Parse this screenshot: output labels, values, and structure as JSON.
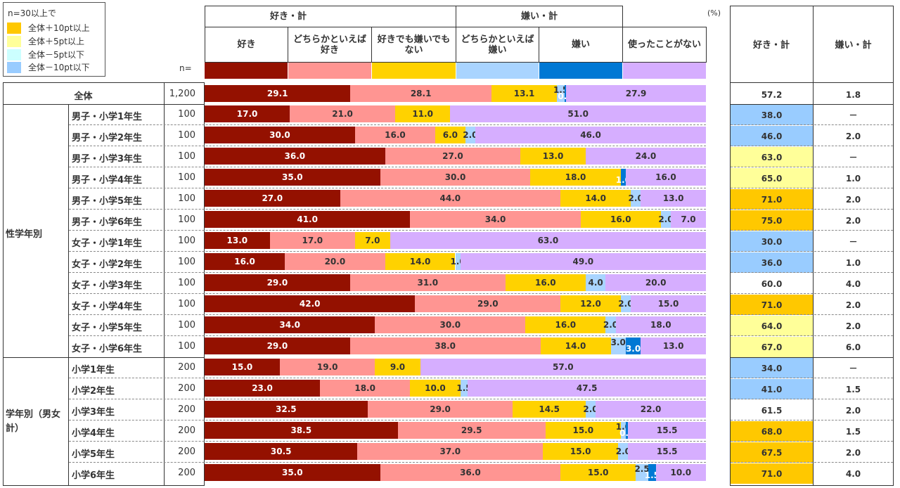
{
  "legend": {
    "title": "n=30以上で",
    "items": [
      {
        "label": "全体＋10pt以上",
        "color": "#FFC800"
      },
      {
        "label": "全体＋5pt以上",
        "color": "#FFFF99"
      },
      {
        "label": "全体－5pt以下",
        "color": "#CCFFFF"
      },
      {
        "label": "全体－10pt以下",
        "color": "#99CCFF"
      }
    ]
  },
  "header": {
    "group_like": "好き・計",
    "group_dislike": "嫌い・計",
    "n_label": "n=",
    "unit": "(%)",
    "summary_like": "好き・計",
    "summary_dislike": "嫌い・計"
  },
  "chart_data": {
    "type": "bar",
    "stacked": true,
    "orientation": "horizontal",
    "xlim": [
      0,
      100
    ],
    "series": [
      {
        "name": "好き",
        "color": "#941100"
      },
      {
        "name": "どちらかといえば\n好き",
        "color": "#FF9592"
      },
      {
        "name": "好きでも嫌いでも\nない",
        "color": "#FFD200"
      },
      {
        "name": "どちらかといえば\n嫌い",
        "color": "#A9D4FF"
      },
      {
        "name": "嫌い",
        "color": "#0078D4"
      },
      {
        "name": "使ったことがない",
        "color": "#D6AEFF"
      }
    ],
    "rows": [
      {
        "group": "",
        "label": "全体",
        "n": "1,200",
        "values": [
          29.1,
          28.1,
          13.1,
          1.5,
          0.3,
          27.9
        ],
        "labels": [
          "29.1",
          "28.1",
          "13.1",
          "1.5",
          "0.3",
          "27.9"
        ],
        "like_total": "57.2",
        "dislike_total": "1.8",
        "like_highlight": ""
      },
      {
        "group": "性学年別",
        "label": "男子・小学1年生",
        "n": "100",
        "values": [
          17.0,
          21.0,
          11.0,
          0,
          0,
          51.0
        ],
        "labels": [
          "17.0",
          "21.0",
          "11.0",
          "",
          "",
          "51.0"
        ],
        "like_total": "38.0",
        "dislike_total": "－",
        "like_highlight": "#99CCFF"
      },
      {
        "group": "性学年別",
        "label": "男子・小学2年生",
        "n": "100",
        "values": [
          30.0,
          16.0,
          6.0,
          2.0,
          0,
          46.0
        ],
        "labels": [
          "30.0",
          "16.0",
          "6.0",
          "2.0",
          "",
          "46.0"
        ],
        "like_total": "46.0",
        "dislike_total": "2.0",
        "like_highlight": "#99CCFF"
      },
      {
        "group": "性学年別",
        "label": "男子・小学3年生",
        "n": "100",
        "values": [
          36.0,
          27.0,
          13.0,
          0,
          0,
          24.0
        ],
        "labels": [
          "36.0",
          "27.0",
          "13.0",
          "",
          "",
          "24.0"
        ],
        "like_total": "63.0",
        "dislike_total": "－",
        "like_highlight": "#FFFF99"
      },
      {
        "group": "性学年別",
        "label": "男子・小学4年生",
        "n": "100",
        "values": [
          35.0,
          30.0,
          18.0,
          0,
          1.0,
          16.0
        ],
        "labels": [
          "35.0",
          "30.0",
          "18.0",
          "",
          "1.0",
          "16.0"
        ],
        "like_total": "65.0",
        "dislike_total": "1.0",
        "like_highlight": "#FFFF99"
      },
      {
        "group": "性学年別",
        "label": "男子・小学5年生",
        "n": "100",
        "values": [
          27.0,
          44.0,
          14.0,
          2.0,
          0,
          13.0
        ],
        "labels": [
          "27.0",
          "44.0",
          "14.0",
          "2.0",
          "",
          "13.0"
        ],
        "like_total": "71.0",
        "dislike_total": "2.0",
        "like_highlight": "#FFC800"
      },
      {
        "group": "性学年別",
        "label": "男子・小学6年生",
        "n": "100",
        "values": [
          41.0,
          34.0,
          16.0,
          2.0,
          0,
          7.0
        ],
        "labels": [
          "41.0",
          "34.0",
          "16.0",
          "2.0",
          "",
          "7.0"
        ],
        "like_total": "75.0",
        "dislike_total": "2.0",
        "like_highlight": "#FFC800"
      },
      {
        "group": "性学年別",
        "label": "女子・小学1年生",
        "n": "100",
        "values": [
          13.0,
          17.0,
          7.0,
          0,
          0,
          63.0
        ],
        "labels": [
          "13.0",
          "17.0",
          "7.0",
          "",
          "",
          "63.0"
        ],
        "like_total": "30.0",
        "dislike_total": "－",
        "like_highlight": "#99CCFF"
      },
      {
        "group": "性学年別",
        "label": "女子・小学2年生",
        "n": "100",
        "values": [
          16.0,
          20.0,
          14.0,
          1.0,
          0,
          49.0
        ],
        "labels": [
          "16.0",
          "20.0",
          "14.0",
          "1.0",
          "",
          "49.0"
        ],
        "like_total": "36.0",
        "dislike_total": "1.0",
        "like_highlight": "#99CCFF"
      },
      {
        "group": "性学年別",
        "label": "女子・小学3年生",
        "n": "100",
        "values": [
          29.0,
          31.0,
          16.0,
          4.0,
          0,
          20.0
        ],
        "labels": [
          "29.0",
          "31.0",
          "16.0",
          "4.0",
          "",
          "20.0"
        ],
        "like_total": "60.0",
        "dislike_total": "4.0",
        "like_highlight": ""
      },
      {
        "group": "性学年別",
        "label": "女子・小学4年生",
        "n": "100",
        "values": [
          42.0,
          29.0,
          12.0,
          2.0,
          0,
          15.0
        ],
        "labels": [
          "42.0",
          "29.0",
          "12.0",
          "2.0",
          "",
          "15.0"
        ],
        "like_total": "71.0",
        "dislike_total": "2.0",
        "like_highlight": "#FFC800"
      },
      {
        "group": "性学年別",
        "label": "女子・小学5年生",
        "n": "100",
        "values": [
          34.0,
          30.0,
          16.0,
          2.0,
          0,
          18.0
        ],
        "labels": [
          "34.0",
          "30.0",
          "16.0",
          "2.0",
          "",
          "18.0"
        ],
        "like_total": "64.0",
        "dislike_total": "2.0",
        "like_highlight": "#FFFF99"
      },
      {
        "group": "性学年別",
        "label": "女子・小学6年生",
        "n": "100",
        "values": [
          29.0,
          38.0,
          14.0,
          3.0,
          3.0,
          13.0
        ],
        "labels": [
          "29.0",
          "38.0",
          "14.0",
          "3.0",
          "3.0",
          "13.0"
        ],
        "like_total": "67.0",
        "dislike_total": "6.0",
        "like_highlight": "#FFFF99"
      },
      {
        "group": "学年別（男女計）",
        "label": "小学1年生",
        "n": "200",
        "values": [
          15.0,
          19.0,
          9.0,
          0,
          0,
          57.0
        ],
        "labels": [
          "15.0",
          "19.0",
          "9.0",
          "",
          "",
          "57.0"
        ],
        "like_total": "34.0",
        "dislike_total": "－",
        "like_highlight": "#99CCFF"
      },
      {
        "group": "学年別（男女計）",
        "label": "小学2年生",
        "n": "200",
        "values": [
          23.0,
          18.0,
          10.0,
          1.5,
          0,
          47.5
        ],
        "labels": [
          "23.0",
          "18.0",
          "10.0",
          "1.5",
          "",
          "47.5"
        ],
        "like_total": "41.0",
        "dislike_total": "1.5",
        "like_highlight": "#99CCFF"
      },
      {
        "group": "学年別（男女計）",
        "label": "小学3年生",
        "n": "200",
        "values": [
          32.5,
          29.0,
          14.5,
          2.0,
          0,
          22.0
        ],
        "labels": [
          "32.5",
          "29.0",
          "14.5",
          "2.0",
          "",
          "22.0"
        ],
        "like_total": "61.5",
        "dislike_total": "2.0",
        "like_highlight": ""
      },
      {
        "group": "学年別（男女計）",
        "label": "小学4年生",
        "n": "200",
        "values": [
          38.5,
          29.5,
          15.0,
          1.0,
          0.5,
          15.5
        ],
        "labels": [
          "38.5",
          "29.5",
          "15.0",
          "1.0",
          "0.5",
          "15.5"
        ],
        "like_total": "68.0",
        "dislike_total": "1.5",
        "like_highlight": "#FFC800"
      },
      {
        "group": "学年別（男女計）",
        "label": "小学5年生",
        "n": "200",
        "values": [
          30.5,
          37.0,
          15.0,
          2.0,
          0,
          15.5
        ],
        "labels": [
          "30.5",
          "37.0",
          "15.0",
          "2.0",
          "",
          "15.5"
        ],
        "like_total": "67.5",
        "dislike_total": "2.0",
        "like_highlight": "#FFC800"
      },
      {
        "group": "学年別（男女計）",
        "label": "小学6年生",
        "n": "200",
        "values": [
          35.0,
          36.0,
          15.0,
          2.5,
          1.5,
          10.0
        ],
        "labels": [
          "35.0",
          "36.0",
          "15.0",
          "2.5",
          "1.5",
          "10.0"
        ],
        "like_total": "71.0",
        "dislike_total": "4.0",
        "like_highlight": "#FFC800"
      }
    ],
    "groups": [
      "性学年別",
      "学年別（男女計）"
    ]
  }
}
